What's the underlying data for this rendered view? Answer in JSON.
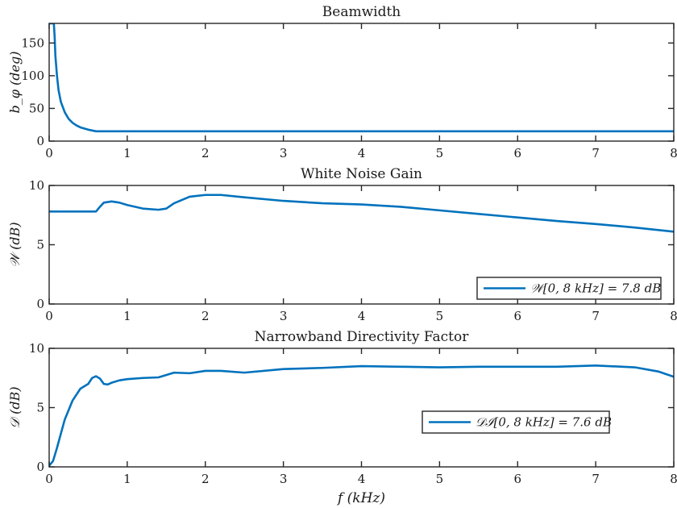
{
  "colors": {
    "series": "#0072BD",
    "axis": "#262626"
  },
  "chart_data": [
    {
      "type": "line",
      "title": "Beamwidth",
      "ylabel": "b_φ (deg)",
      "xlabel": "",
      "xlim": [
        0,
        8
      ],
      "ylim": [
        0,
        180
      ],
      "xticks": [
        0,
        1,
        2,
        3,
        4,
        5,
        6,
        7,
        8
      ],
      "yticks": [
        0,
        50,
        100,
        150
      ],
      "legend": null,
      "series": [
        {
          "x": [
            0.0,
            0.06,
            0.07,
            0.08,
            0.1,
            0.12,
            0.15,
            0.2,
            0.25,
            0.3,
            0.35,
            0.4,
            0.5,
            0.6,
            0.7,
            1.0,
            2.0,
            3.0,
            4.0,
            5.0,
            6.0,
            7.0,
            8.0
          ],
          "y": [
            180,
            180,
            160,
            130,
            100,
            78,
            60,
            44,
            34,
            28,
            24,
            21,
            17.5,
            15,
            15,
            15,
            15,
            15,
            15,
            15,
            15,
            15,
            15
          ]
        }
      ]
    },
    {
      "type": "line",
      "title": "White Noise Gain",
      "ylabel": "𝒲 (dB)",
      "xlabel": "",
      "xlim": [
        0,
        8
      ],
      "ylim": [
        0,
        10
      ],
      "xticks": [
        0,
        1,
        2,
        3,
        4,
        5,
        6,
        7,
        8
      ],
      "yticks": [
        0,
        5,
        10
      ],
      "legend": {
        "text": "𝒲[0, 8 kHz] = 7.8 dB",
        "placement": "bottom-right"
      },
      "series": [
        {
          "x": [
            0.0,
            0.3,
            0.6,
            0.65,
            0.7,
            0.8,
            0.9,
            1.0,
            1.2,
            1.4,
            1.5,
            1.6,
            1.8,
            2.0,
            2.2,
            2.5,
            3.0,
            3.5,
            4.0,
            4.5,
            5.0,
            5.5,
            6.0,
            6.5,
            7.0,
            7.5,
            8.0
          ],
          "y": [
            7.8,
            7.8,
            7.8,
            8.2,
            8.55,
            8.65,
            8.55,
            8.35,
            8.05,
            7.95,
            8.05,
            8.5,
            9.05,
            9.2,
            9.2,
            9.0,
            8.7,
            8.5,
            8.4,
            8.2,
            7.9,
            7.6,
            7.3,
            7.0,
            6.75,
            6.45,
            6.1
          ]
        }
      ]
    },
    {
      "type": "line",
      "title": "Narrowband Directivity Factor",
      "ylabel": "𝒟 (dB)",
      "xlabel": "f (kHz)",
      "xlim": [
        0,
        8
      ],
      "ylim": [
        0,
        10
      ],
      "xticks": [
        0,
        1,
        2,
        3,
        4,
        5,
        6,
        7,
        8
      ],
      "yticks": [
        0,
        5,
        10
      ],
      "legend": {
        "text": "𝒟ℐ[0, 8 kHz] = 7.6 dB",
        "placement": "center-right"
      },
      "series": [
        {
          "x": [
            0.0,
            0.05,
            0.1,
            0.15,
            0.2,
            0.3,
            0.4,
            0.5,
            0.55,
            0.6,
            0.65,
            0.7,
            0.75,
            0.8,
            0.9,
            1.0,
            1.2,
            1.4,
            1.6,
            1.8,
            2.0,
            2.2,
            2.5,
            3.0,
            3.5,
            4.0,
            4.5,
            5.0,
            5.5,
            6.0,
            6.5,
            7.0,
            7.5,
            7.8,
            8.0
          ],
          "y": [
            0.1,
            0.5,
            1.6,
            2.8,
            4.0,
            5.6,
            6.6,
            7.0,
            7.5,
            7.65,
            7.45,
            7.0,
            6.95,
            7.1,
            7.3,
            7.4,
            7.5,
            7.55,
            7.95,
            7.9,
            8.1,
            8.1,
            7.95,
            8.25,
            8.35,
            8.5,
            8.45,
            8.4,
            8.45,
            8.45,
            8.45,
            8.55,
            8.4,
            8.05,
            7.6
          ]
        }
      ]
    }
  ]
}
